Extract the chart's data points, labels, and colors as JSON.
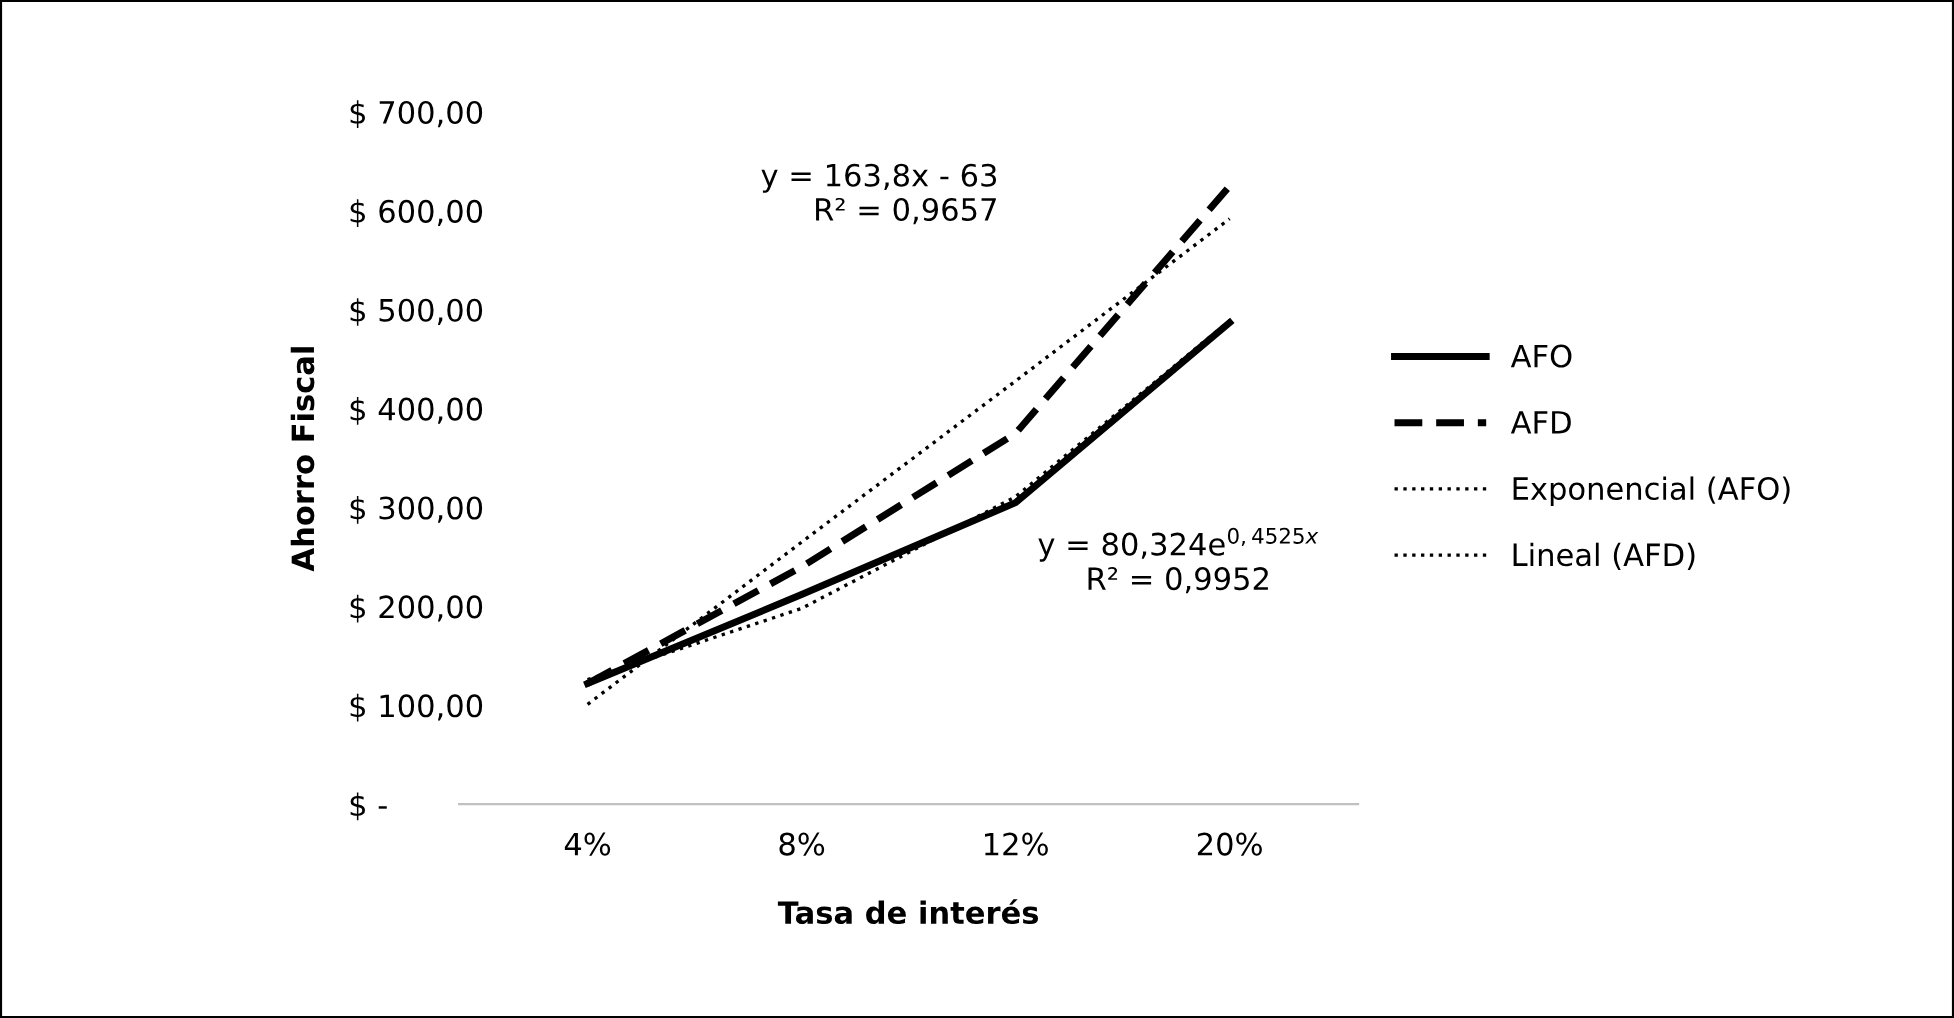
{
  "chart_data": {
    "type": "line",
    "xlabel": "Tasa de interés",
    "ylabel": "Ahorro Fiscal",
    "categories": [
      "4%",
      "8%",
      "12%",
      "20%"
    ],
    "series": [
      {
        "name": "AFO",
        "color": "#000000",
        "line_style": "solid",
        "values": [
          122,
          212,
          305,
          487
        ]
      },
      {
        "name": "AFD",
        "color": "#000000",
        "line_style": "dashed",
        "values": [
          122,
          240,
          375,
          625
        ]
      },
      {
        "name": "Exponencial (AFO)",
        "color": "#000000",
        "line_style": "dotted",
        "values": [
          126,
          198,
          311,
          489
        ]
      },
      {
        "name": "Lineal (AFD)",
        "color": "#000000",
        "line_style": "dotted",
        "values": [
          101,
          265,
          428,
          592
        ]
      }
    ],
    "ylim": [
      0,
      700
    ],
    "yticks": [
      {
        "value": 0,
        "label": "$ -"
      },
      {
        "value": 100,
        "label": "$ 100,00"
      },
      {
        "value": 200,
        "label": "$ 200,00"
      },
      {
        "value": 300,
        "label": "$ 300,00"
      },
      {
        "value": 400,
        "label": "$ 400,00"
      },
      {
        "value": 500,
        "label": "$ 500,00"
      },
      {
        "value": 600,
        "label": "$ 600,00"
      },
      {
        "value": 700,
        "label": "$ 700,00"
      }
    ],
    "grid": false,
    "legend": "right",
    "marker": "none",
    "annotations": [
      "y = 163,8x - 63\nR² = 0,9657",
      "y = 80,324e$^{0,4525x}$\nR² = 0,9952"
    ]
  }
}
